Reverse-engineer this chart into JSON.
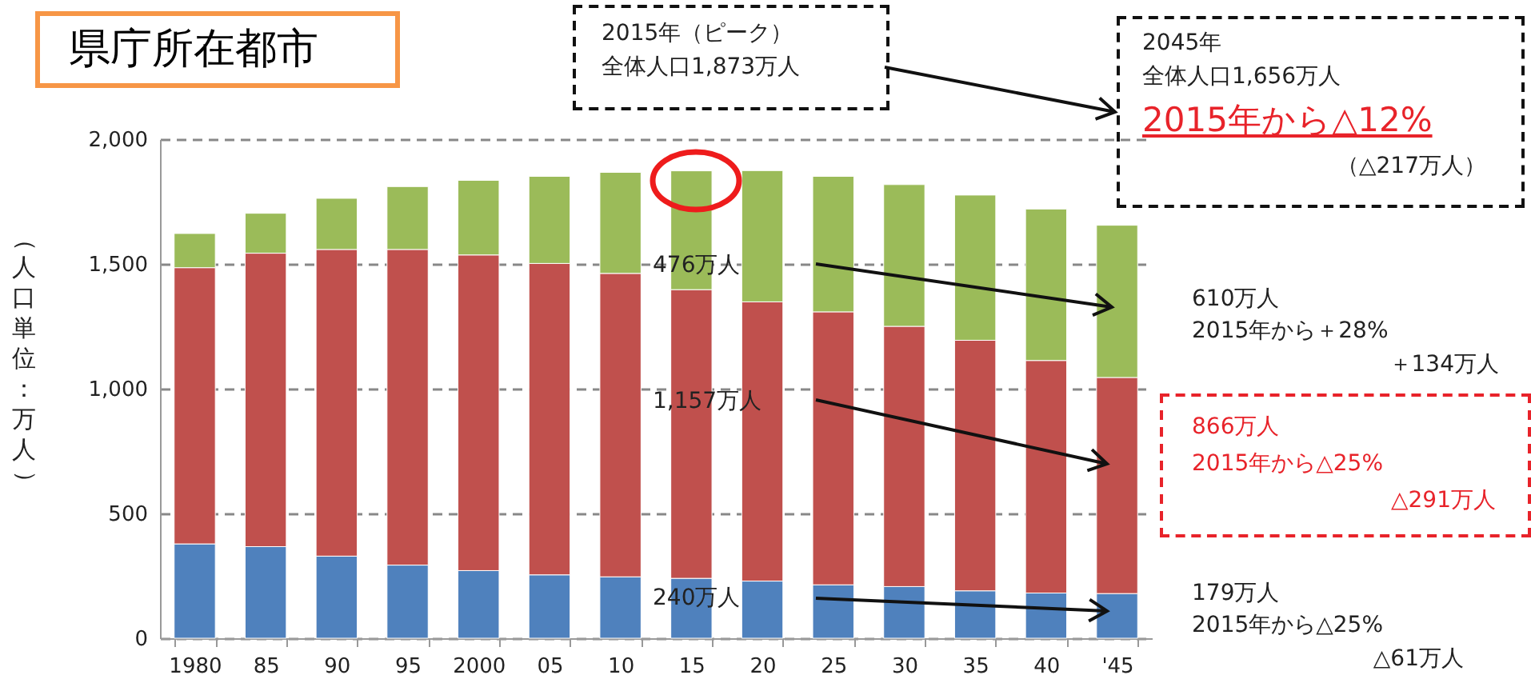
{
  "chart_data": {
    "type": "bar",
    "stacked": true,
    "title": "県庁所在都市",
    "ylabel": "（人口単位：万人）",
    "categories": [
      "1980",
      "85",
      "90",
      "95",
      "2000",
      "05",
      "10",
      "15",
      "20",
      "25",
      "30",
      "35",
      "40",
      "'45"
    ],
    "series": [
      {
        "color": "#4f81bd",
        "values": [
          378,
          367,
          329,
          293,
          271,
          254,
          246,
          240,
          229,
          214,
          207,
          190,
          181,
          179
        ]
      },
      {
        "color": "#c0504d",
        "values": [
          1107,
          1176,
          1229,
          1265,
          1265,
          1248,
          1216,
          1157,
          1119,
          1094,
          1043,
          1004,
          932,
          866
        ]
      },
      {
        "color": "#9bbb59",
        "values": [
          137,
          160,
          205,
          252,
          299,
          349,
          405,
          476,
          526,
          543,
          568,
          582,
          607,
          610
        ]
      }
    ],
    "ylim": [
      0,
      2000
    ],
    "yticks": [
      {
        "value": 0,
        "label": "0"
      },
      {
        "value": 500,
        "label": "500"
      },
      {
        "value": 1000,
        "label": "1,000"
      },
      {
        "value": 1500,
        "label": "1,500"
      },
      {
        "value": 2000,
        "label": "2,000"
      }
    ],
    "grid": "y",
    "annotations": [
      "2015年（ピーク）",
      "全体人口1,873万人",
      "2045年",
      "全体人口1,656万人",
      "2015年から△12%",
      "（△217万人）",
      "476万人",
      "1,157万人",
      "240万人",
      "610万人",
      "2015年から＋28%",
      "＋134万人",
      "866万人",
      "2015年から△25%",
      "△291万人",
      "179万人",
      "2015年から△25%",
      "△61万人"
    ]
  }
}
